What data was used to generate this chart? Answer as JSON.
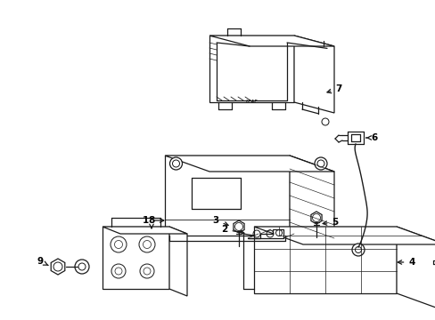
{
  "background_color": "#ffffff",
  "line_color": "#1a1a1a",
  "label_color": "#000000",
  "fig_width": 4.89,
  "fig_height": 3.6,
  "dpi": 100,
  "label_fontsize": 7.5,
  "label_fontweight": "bold"
}
